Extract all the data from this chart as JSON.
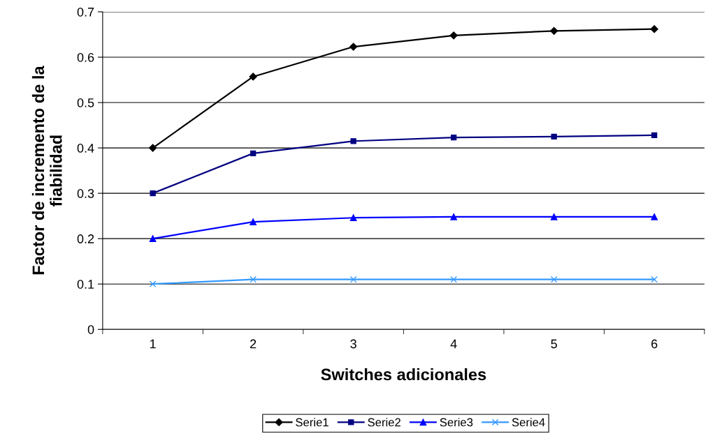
{
  "chart_data": {
    "type": "line",
    "xlabel": "Switches adicionales",
    "ylabel": "Factor de incremento de la\nfiabilidad",
    "categories": [
      "1",
      "2",
      "3",
      "4",
      "5",
      "6"
    ],
    "series": [
      {
        "name": "Serie1",
        "color": "#000000",
        "marker": "diamond",
        "values": [
          0.4,
          0.557,
          0.623,
          0.648,
          0.658,
          0.662
        ]
      },
      {
        "name": "Serie2",
        "color": "#000080",
        "marker": "square",
        "values": [
          0.3,
          0.388,
          0.415,
          0.423,
          0.425,
          0.428
        ]
      },
      {
        "name": "Serie3",
        "color": "#0000ff",
        "marker": "triangle",
        "values": [
          0.2,
          0.237,
          0.246,
          0.248,
          0.248,
          0.248
        ]
      },
      {
        "name": "Serie4",
        "color": "#3399ff",
        "marker": "cross",
        "values": [
          0.1,
          0.11,
          0.11,
          0.11,
          0.11,
          0.11
        ]
      }
    ],
    "ylim": [
      0,
      0.7
    ],
    "yticks": [
      0,
      0.1,
      0.2,
      0.3,
      0.4,
      0.5,
      0.6,
      0.7
    ],
    "grid": "y",
    "legend": "bottom",
    "line_style": "solid"
  }
}
